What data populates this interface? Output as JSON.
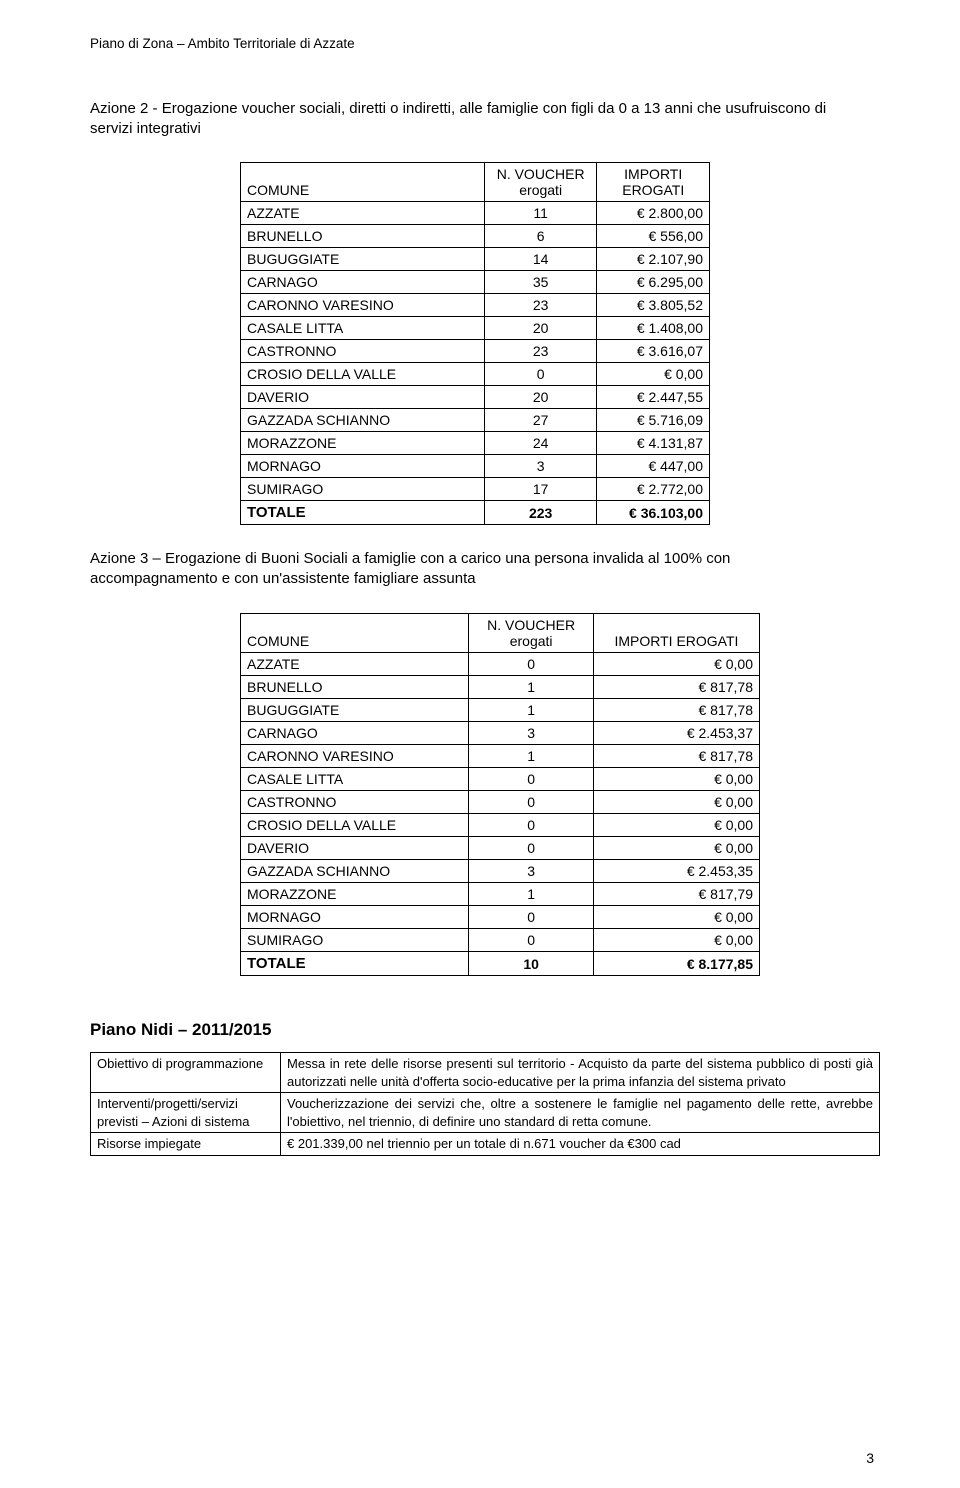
{
  "header": {
    "running": "Piano di Zona – Ambito Territoriale di Azzate"
  },
  "azione2": {
    "title": "Azione 2 - Erogazione voucher sociali, diretti o indiretti, alle famiglie con figli da 0 a 13 anni che usufruiscono di  servizi integrativi",
    "col_comune": "COMUNE",
    "col_voucher": "N. VOUCHER erogati",
    "col_importi": "IMPORTI EROGATI",
    "rows": [
      {
        "c": "AZZATE",
        "n": "11",
        "v": "€ 2.800,00"
      },
      {
        "c": "BRUNELLO",
        "n": "6",
        "v": "€ 556,00"
      },
      {
        "c": "BUGUGGIATE",
        "n": "14",
        "v": "€ 2.107,90"
      },
      {
        "c": "CARNAGO",
        "n": "35",
        "v": "€ 6.295,00"
      },
      {
        "c": "CARONNO VARESINO",
        "n": "23",
        "v": "€ 3.805,52"
      },
      {
        "c": "CASALE LITTA",
        "n": "20",
        "v": "€ 1.408,00"
      },
      {
        "c": "CASTRONNO",
        "n": "23",
        "v": "€ 3.616,07"
      },
      {
        "c": "CROSIO DELLA VALLE",
        "n": "0",
        "v": "€ 0,00"
      },
      {
        "c": "DAVERIO",
        "n": "20",
        "v": "€ 2.447,55"
      },
      {
        "c": "GAZZADA SCHIANNO",
        "n": "27",
        "v": "€ 5.716,09"
      },
      {
        "c": "MORAZZONE",
        "n": "24",
        "v": "€ 4.131,87"
      },
      {
        "c": "MORNAGO",
        "n": "3",
        "v": "€ 447,00"
      },
      {
        "c": "SUMIRAGO",
        "n": "17",
        "v": "€ 2.772,00"
      }
    ],
    "total": {
      "c": "TOTALE",
      "n": "223",
      "v": "€ 36.103,00"
    }
  },
  "azione3": {
    "title": "Azione 3 – Erogazione di Buoni Sociali a famiglie con a carico una persona invalida al 100% con accompagnamento e con un'assistente famigliare assunta",
    "col_comune": "COMUNE",
    "col_voucher": "N. VOUCHER erogati",
    "col_importi": "IMPORTI EROGATI",
    "rows": [
      {
        "c": "AZZATE",
        "n": "0",
        "v": "€ 0,00"
      },
      {
        "c": "BRUNELLO",
        "n": "1",
        "v": "€ 817,78"
      },
      {
        "c": "BUGUGGIATE",
        "n": "1",
        "v": "€ 817,78"
      },
      {
        "c": "CARNAGO",
        "n": "3",
        "v": "€ 2.453,37"
      },
      {
        "c": "CARONNO VARESINO",
        "n": "1",
        "v": "€ 817,78"
      },
      {
        "c": "CASALE LITTA",
        "n": "0",
        "v": "€ 0,00"
      },
      {
        "c": "CASTRONNO",
        "n": "0",
        "v": "€ 0,00"
      },
      {
        "c": "CROSIO DELLA VALLE",
        "n": "0",
        "v": "€ 0,00"
      },
      {
        "c": "DAVERIO",
        "n": "0",
        "v": "€ 0,00"
      },
      {
        "c": "GAZZADA SCHIANNO",
        "n": "3",
        "v": "€ 2.453,35"
      },
      {
        "c": "MORAZZONE",
        "n": "1",
        "v": "€ 817,79"
      },
      {
        "c": "MORNAGO",
        "n": "0",
        "v": "€ 0,00"
      },
      {
        "c": "SUMIRAGO",
        "n": "0",
        "v": "€ 0,00"
      }
    ],
    "total": {
      "c": "TOTALE",
      "n": "10",
      "v": "€ 8.177,85"
    }
  },
  "pianoNidi": {
    "heading": "Piano Nidi – 2011/2015",
    "rows": [
      {
        "label": "Obiettivo di programmazione",
        "value": "Messa in rete delle risorse presenti sul territorio - Acquisto da parte del sistema pubblico di posti già autorizzati nelle unità d'offerta socio-educative per la prima infanzia del sistema privato"
      },
      {
        "label": "Interventi/progetti/servizi previsti – Azioni di sistema",
        "value": "Voucherizzazione dei servizi che, oltre a sostenere le famiglie nel pagamento delle rette, avrebbe l'obiettivo, nel triennio, di definire uno standard di retta comune."
      },
      {
        "label": "Risorse impiegate",
        "value": "€ 201.339,00 nel triennio per un totale di n.671 voucher da €300 cad"
      }
    ]
  },
  "pageNumber": "3",
  "style": {
    "page_bg": "#ffffff",
    "text_color": "#000000",
    "border_color": "#000000",
    "body_font_size_pt": 11,
    "title_font_size_pt": 11,
    "heading_font_size_pt": 13,
    "table_widths": {
      "t1": 470,
      "t2": 520
    }
  }
}
